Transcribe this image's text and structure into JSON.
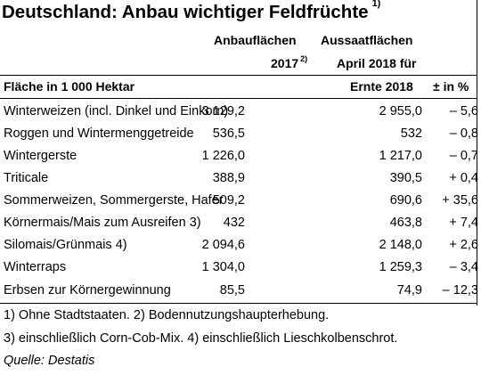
{
  "title": {
    "text": "Deutschland: Anbau wichtiger Feldfrüchte",
    "note": "1)"
  },
  "header": {
    "col1_line1": "Anbauflächen",
    "col1_line2": "2017",
    "col1_note": "2)",
    "col2_line1": "Aussaatflächen",
    "col2_line2": "April 2018 für",
    "col2_line3": "Ernte 2018",
    "col3": "± in %",
    "unit": "Fläche in 1 000 Hektar"
  },
  "rows": [
    {
      "label": "Winterweizen (incl. Dinkel und Einkorn)",
      "v2017": "3 129,2",
      "v2018": "2 955,0",
      "change": "– 5,6"
    },
    {
      "label": "Roggen und Wintermenggetreide",
      "v2017": "536,5",
      "v2018": "532",
      "change": "– 0,8"
    },
    {
      "label": "Wintergerste",
      "v2017": "1 226,0",
      "v2018": "1 217,0",
      "change": "– 0,7"
    },
    {
      "label": "Triticale",
      "v2017": "388,9",
      "v2018": "390,5",
      "change": "+ 0,4"
    },
    {
      "label": "Sommerweizen, Sommergerste, Hafer",
      "v2017": "509,2",
      "v2018": "690,6",
      "change": "+ 35,6"
    },
    {
      "label": "Körnermais/Mais zum Ausreifen 3)",
      "v2017": "432",
      "v2018": "463,8",
      "change": "+ 7,4"
    },
    {
      "label": "Silomais/Grünmais 4)",
      "v2017": "2 094,6",
      "v2018": "2 148,0",
      "change": "+ 2,6"
    },
    {
      "label": "Winterraps",
      "v2017": "1 304,0",
      "v2018": "1 259,3",
      "change": "– 3,4"
    },
    {
      "label": "Erbsen zur Körnergewinnung",
      "v2017": "85,5",
      "v2018": "74,9",
      "change": "– 12,3"
    }
  ],
  "footnotes": {
    "line1": "1) Ohne Stadtstaaten. 2) Bodennutzungshaupterhebung.",
    "line2": "3) einschließlich Corn-Cob-Mix. 4) einschließlich Lieschkolbenschrot.",
    "source": "Quelle: Destatis"
  }
}
